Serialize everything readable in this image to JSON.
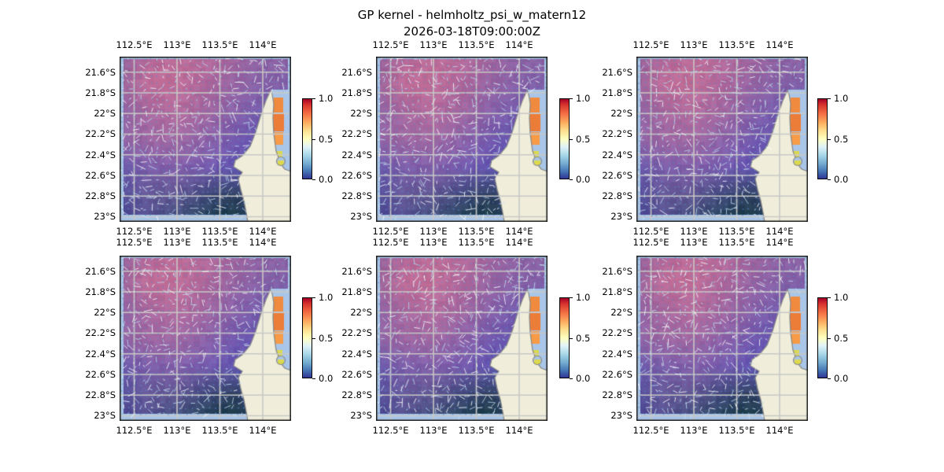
{
  "figure": {
    "title": "GP kernel - helmholtz_psi_w_matern12",
    "subtitle": "2026-03-18T09:00:00Z"
  },
  "axes": {
    "x_tick_labels": [
      "112.5°E",
      "113°E",
      "113.5°E",
      "114°E"
    ],
    "y_tick_labels": [
      "21.6°S",
      "21.8°S",
      "22°S",
      "22.2°S",
      "22.4°S",
      "22.6°S",
      "22.8°S",
      "23°S"
    ]
  },
  "colorbar": {
    "tick_labels": [
      "1.0",
      "0.5",
      "0.0"
    ],
    "gradient_stops": [
      [
        "#a50026",
        0
      ],
      [
        "#d7322d",
        7
      ],
      [
        "#f46d43",
        18
      ],
      [
        "#fdae61",
        30
      ],
      [
        "#fee090",
        40
      ],
      [
        "#ffffbf",
        50
      ],
      [
        "#e0f3f8",
        60
      ],
      [
        "#abd9e9",
        70
      ],
      [
        "#74add1",
        81
      ],
      [
        "#4575b4",
        91
      ],
      [
        "#313695",
        100
      ]
    ]
  },
  "colors": {
    "background": "#ffffff",
    "land": "#f0eedb",
    "coastline": "#8a8a8a",
    "ocean_margin": "#a9c6e8",
    "gulf_water": "#a9c6e8",
    "gridline": "#c8c8c6",
    "spine": "#1a1a1a",
    "quiver_dot": "rgba(90,140,200,0.75)",
    "quiver_arrow_white": "rgba(255,255,255,0.9)",
    "quiver_arrow_pale": "rgba(200,225,240,0.85)",
    "high_value_cells": [
      "#f08a3e",
      "#ec7d38",
      "#f79b47"
    ],
    "mid_value_cells": [
      "#ddd94e",
      "#cfe05a"
    ]
  },
  "chart_data": {
    "type": "heatmap",
    "layout": "2 rows x 3 columns of identical map panels",
    "n_panels": 6,
    "projection_extent": {
      "lon_min": 112.33,
      "lon_max": 114.33,
      "lat_min": -23.05,
      "lat_max": -21.45
    },
    "lon_ticks": [
      112.5,
      113,
      113.5,
      114
    ],
    "lat_ticks": [
      21.6,
      21.8,
      22.0,
      22.2,
      22.4,
      22.6,
      22.8,
      23.0
    ],
    "colormap": "RdYlBu_r",
    "colorbar_range": [
      0.0,
      1.0
    ],
    "colorbar_ticks": [
      1.0,
      0.5,
      0.0
    ],
    "overlays": [
      "pcolormesh scalar field",
      "quiver velocity arrows",
      "graticule gridlines",
      "land mask (North West Cape / Exmouth Gulf region)"
    ],
    "gulf_cell_values_approx": {
      "orange_cells": 0.7,
      "yellow_cells": 0.4
    },
    "field_color_grid": [
      [
        "#8f5f9a",
        "#b4689a",
        "#bd6b96",
        "#b66a9a",
        "#a2659e",
        "#8d60a2",
        "#8a62a2"
      ],
      [
        "#9a649c",
        "#c06c97",
        "#c16d98",
        "#b0689c",
        "#9763a2",
        "#855fa6",
        "#7e5da7"
      ],
      [
        "#8a5fa2",
        "#a9689e",
        "#b56b9c",
        "#a467a0",
        "#8960a8",
        "#7359ac",
        "#6d58ac"
      ],
      [
        "#8e62a4",
        "#9f66a2",
        "#a268a2",
        "#8f62a8",
        "#7659ae",
        "#6253b0",
        "#5c52af"
      ],
      [
        "#6756a9",
        "#7d5da9",
        "#8560ab",
        "#785bae",
        "#6354b2",
        "#544eb0",
        "#514dab"
      ],
      [
        "#57509f",
        "#655898",
        "#615692",
        "#42497e",
        "#324364",
        "#3d4380",
        "#474b8c"
      ],
      [
        "#4a4792",
        "#4e4b8a",
        "#40507c",
        "#1e4150",
        "#15383f",
        "#294166",
        "#3a4878"
      ]
    ]
  }
}
